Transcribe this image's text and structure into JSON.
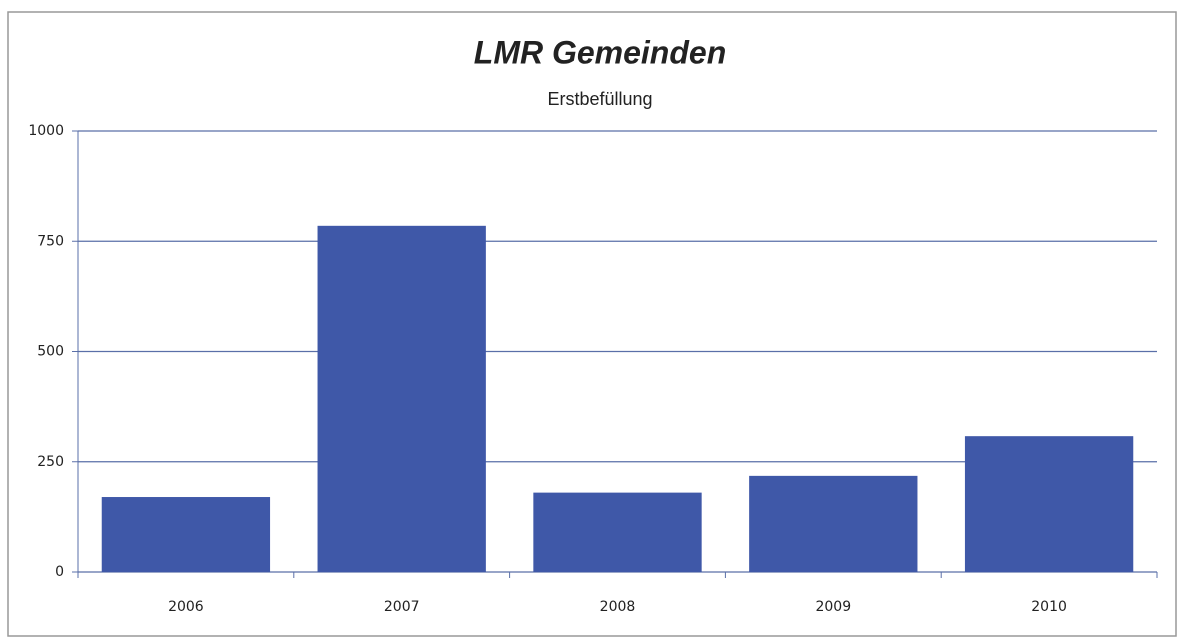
{
  "chart_data": {
    "type": "bar",
    "title": "LMR Gemeinden",
    "subtitle": "Erstbefüllung",
    "categories": [
      "2006",
      "2007",
      "2008",
      "2009",
      "2010"
    ],
    "values": [
      170,
      785,
      180,
      218,
      308
    ],
    "color": "#3f58a8",
    "ylim": [
      0,
      1000
    ],
    "yticks": [
      0,
      250,
      500,
      750,
      1000
    ],
    "grid": true
  }
}
